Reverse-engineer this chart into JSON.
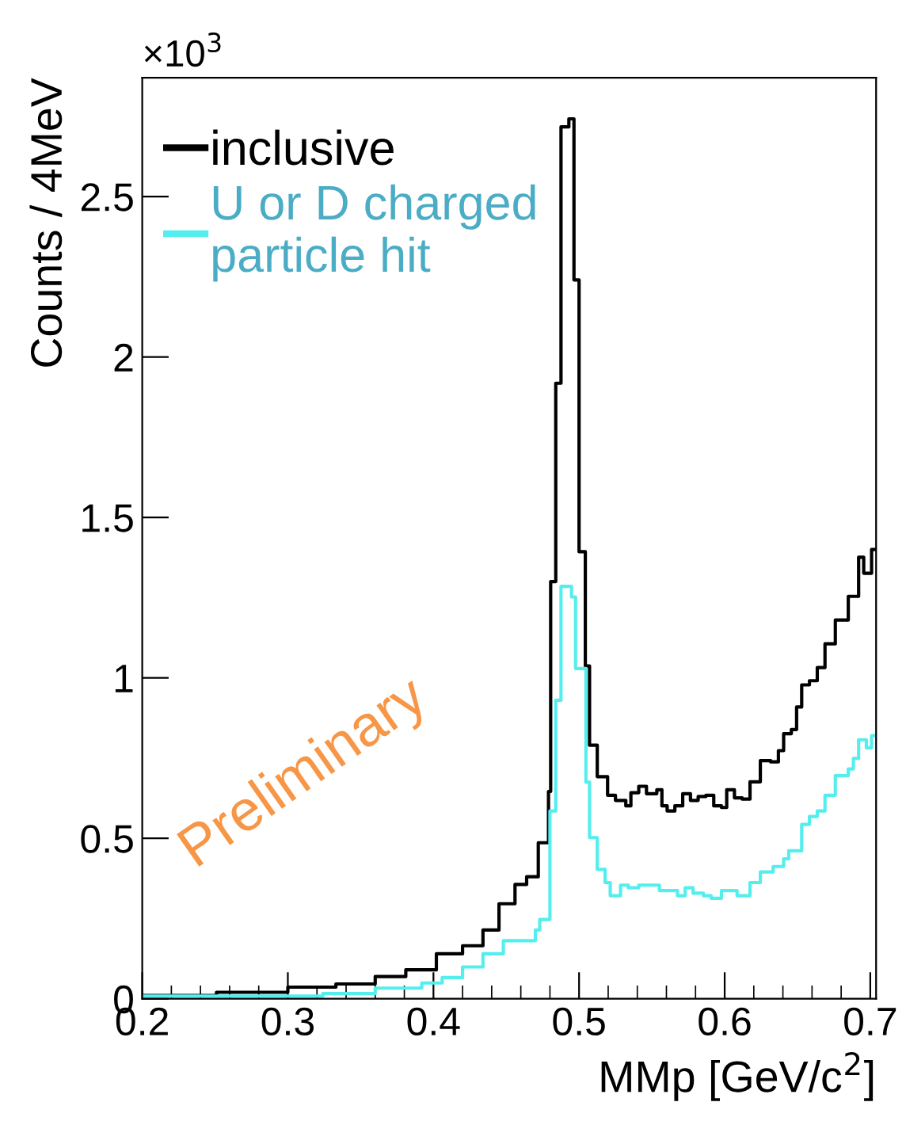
{
  "chart_data": {
    "type": "step",
    "xlabel": "MMp [GeV/c$^{2}$]",
    "ylabel": "Counts / 4MeV",
    "xlim": [
      0.2,
      0.704
    ],
    "xticks": [
      0.2,
      0.3,
      0.4,
      0.5,
      0.6,
      0.7
    ],
    "ylim": [
      0,
      2.87
    ],
    "yticks": [
      0,
      0.5,
      1,
      1.5,
      2,
      2.5
    ],
    "legend": "top left",
    "grid": false,
    "annotations": [
      "×10$^{3}$",
      "Preliminary"
    ],
    "series": [
      {
        "name": "inclusive",
        "color": "#000000",
        "x": [
          0.2,
          0.251,
          0.3,
          0.333,
          0.36,
          0.381,
          0.402,
          0.42,
          0.434,
          0.445,
          0.456,
          0.464,
          0.472,
          0.479,
          0.4805,
          0.484,
          0.4876,
          0.493,
          0.4965,
          0.5,
          0.5043,
          0.5072,
          0.5125,
          0.5196,
          0.525,
          0.5321,
          0.5356,
          0.541,
          0.5463,
          0.5534,
          0.5569,
          0.5605,
          0.5658,
          0.5712,
          0.5765,
          0.5818,
          0.5871,
          0.5925,
          0.5978,
          0.6014,
          0.6067,
          0.612,
          0.6174,
          0.6245,
          0.6316,
          0.6369,
          0.6405,
          0.6458,
          0.6494,
          0.6529,
          0.6582,
          0.6636,
          0.6689,
          0.676,
          0.6849,
          0.692,
          0.6955,
          0.7009,
          0.7037
        ],
        "values": [
          0.01,
          0.02,
          0.036,
          0.046,
          0.069,
          0.09,
          0.14,
          0.165,
          0.214,
          0.296,
          0.356,
          0.38,
          0.486,
          0.646,
          1.3,
          1.918,
          2.717,
          2.742,
          2.24,
          1.393,
          1.037,
          0.79,
          0.692,
          0.634,
          0.618,
          0.601,
          0.642,
          0.662,
          0.639,
          0.651,
          0.601,
          0.585,
          0.601,
          0.639,
          0.618,
          0.63,
          0.634,
          0.601,
          0.596,
          0.651,
          0.626,
          0.622,
          0.676,
          0.742,
          0.738,
          0.773,
          0.826,
          0.839,
          0.909,
          0.978,
          0.991,
          1.032,
          1.106,
          1.18,
          1.254,
          1.376,
          1.326,
          1.4,
          1.4
        ]
      },
      {
        "name": "U or D charged\nparticle hit",
        "color": "#55eeee",
        "x": [
          0.2,
          0.324,
          0.36,
          0.392,
          0.406,
          0.42,
          0.434,
          0.448,
          0.47,
          0.473,
          0.48,
          0.484,
          0.4876,
          0.4912,
          0.4948,
          0.4976,
          0.5047,
          0.5072,
          0.5125,
          0.5179,
          0.5214,
          0.5285,
          0.5338,
          0.541,
          0.5552,
          0.5676,
          0.5729,
          0.5783,
          0.5854,
          0.5907,
          0.5978,
          0.6085,
          0.6174,
          0.6245,
          0.6333,
          0.6405,
          0.644,
          0.6529,
          0.6582,
          0.6636,
          0.6689,
          0.676,
          0.6849,
          0.6884,
          0.692,
          0.6973,
          0.7009,
          0.7037
        ],
        "values": [
          0.008,
          0.016,
          0.033,
          0.049,
          0.066,
          0.099,
          0.14,
          0.181,
          0.214,
          0.247,
          0.585,
          0.93,
          1.285,
          1.285,
          1.252,
          1.029,
          0.675,
          0.502,
          0.403,
          0.362,
          0.321,
          0.354,
          0.346,
          0.354,
          0.337,
          0.321,
          0.346,
          0.329,
          0.321,
          0.313,
          0.337,
          0.321,
          0.362,
          0.395,
          0.412,
          0.436,
          0.461,
          0.543,
          0.568,
          0.585,
          0.634,
          0.695,
          0.716,
          0.749,
          0.807,
          0.782,
          0.82,
          0.82
        ]
      }
    ]
  }
}
